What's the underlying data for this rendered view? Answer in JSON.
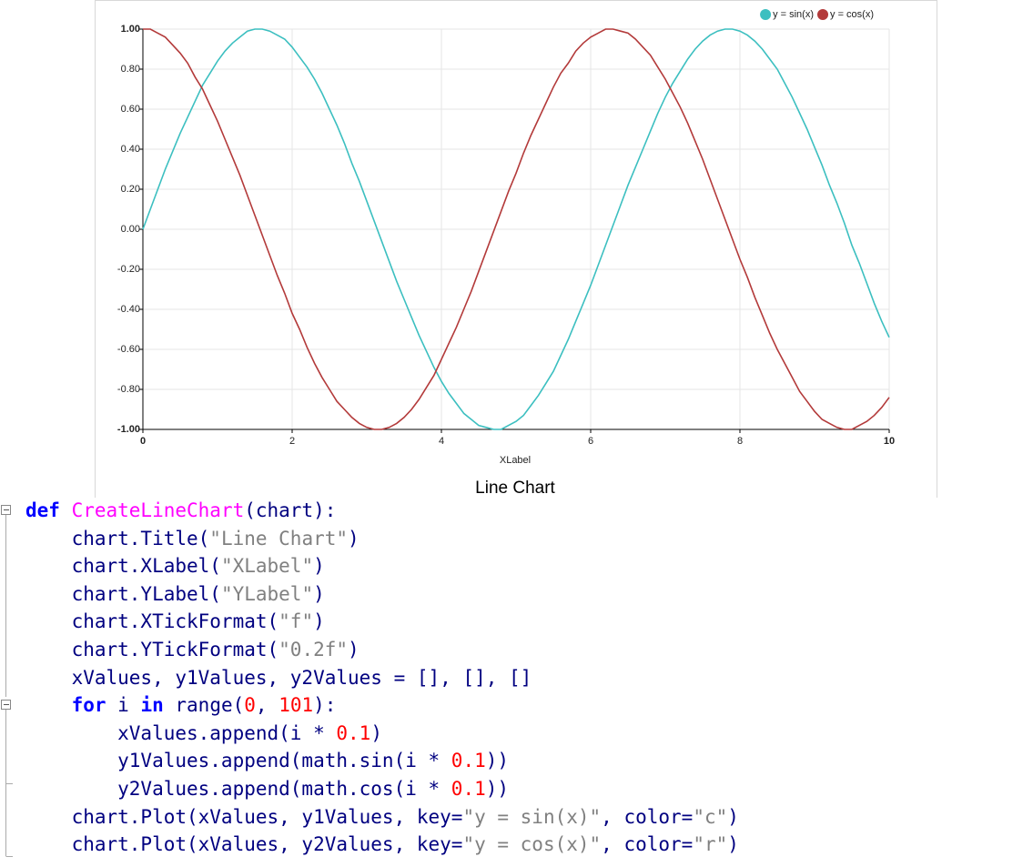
{
  "chart_data": {
    "type": "line",
    "title": "Line Chart",
    "x_label": "XLabel",
    "x": [
      0,
      0.1,
      0.2,
      0.3,
      0.4,
      0.5,
      0.6,
      0.7,
      0.8,
      0.9,
      1,
      1.1,
      1.2,
      1.3,
      1.4,
      1.5,
      1.6,
      1.7,
      1.8,
      1.9,
      2,
      2.1,
      2.2,
      2.3,
      2.4,
      2.5,
      2.6,
      2.7,
      2.8,
      2.9,
      3,
      3.1,
      3.2,
      3.3,
      3.4,
      3.5,
      3.6,
      3.7,
      3.8,
      3.9,
      4,
      4.1,
      4.2,
      4.3,
      4.4,
      4.5,
      4.6,
      4.7,
      4.8,
      4.9,
      5,
      5.1,
      5.2,
      5.3,
      5.4,
      5.5,
      5.6,
      5.7,
      5.8,
      5.9,
      6,
      6.1,
      6.2,
      6.3,
      6.4,
      6.5,
      6.6,
      6.7,
      6.8,
      6.9,
      7,
      7.1,
      7.2,
      7.3,
      7.4,
      7.5,
      7.6,
      7.7,
      7.8,
      7.9,
      8,
      8.1,
      8.2,
      8.3,
      8.4,
      8.5,
      8.6,
      8.7,
      8.8,
      8.9,
      9,
      9.1,
      9.2,
      9.3,
      9.4,
      9.5,
      9.6,
      9.7,
      9.8,
      9.9,
      10
    ],
    "series": [
      {
        "name": "y = sin(x)",
        "color": "#3cbfc0",
        "values": [
          0,
          0.1,
          0.2,
          0.3,
          0.39,
          0.48,
          0.56,
          0.64,
          0.72,
          0.78,
          0.84,
          0.89,
          0.93,
          0.96,
          0.99,
          1,
          1,
          0.99,
          0.97,
          0.95,
          0.91,
          0.86,
          0.81,
          0.75,
          0.68,
          0.6,
          0.52,
          0.43,
          0.33,
          0.24,
          0.14,
          0.04,
          -0.06,
          -0.16,
          -0.26,
          -0.35,
          -0.44,
          -0.53,
          -0.61,
          -0.69,
          -0.76,
          -0.82,
          -0.87,
          -0.92,
          -0.95,
          -0.98,
          -0.99,
          -1,
          -1,
          -0.98,
          -0.96,
          -0.93,
          -0.88,
          -0.83,
          -0.77,
          -0.71,
          -0.63,
          -0.55,
          -0.46,
          -0.37,
          -0.28,
          -0.18,
          -0.08,
          0.02,
          0.12,
          0.22,
          0.31,
          0.4,
          0.49,
          0.58,
          0.66,
          0.73,
          0.79,
          0.85,
          0.9,
          0.94,
          0.97,
          0.99,
          1,
          1,
          0.99,
          0.97,
          0.94,
          0.9,
          0.85,
          0.8,
          0.73,
          0.66,
          0.58,
          0.5,
          0.41,
          0.32,
          0.22,
          0.13,
          0.03,
          -0.08,
          -0.17,
          -0.27,
          -0.37,
          -0.46,
          -0.54
        ]
      },
      {
        "name": "y = cos(x)",
        "color": "#b33a3a",
        "values": [
          1,
          1,
          0.98,
          0.96,
          0.92,
          0.88,
          0.83,
          0.76,
          0.7,
          0.62,
          0.54,
          0.45,
          0.36,
          0.27,
          0.17,
          0.07,
          -0.03,
          -0.13,
          -0.23,
          -0.32,
          -0.42,
          -0.5,
          -0.59,
          -0.67,
          -0.74,
          -0.8,
          -0.86,
          -0.9,
          -0.94,
          -0.97,
          -0.99,
          -1,
          -1,
          -0.99,
          -0.97,
          -0.94,
          -0.9,
          -0.85,
          -0.79,
          -0.73,
          -0.65,
          -0.57,
          -0.49,
          -0.4,
          -0.31,
          -0.21,
          -0.11,
          -0.01,
          0.09,
          0.19,
          0.28,
          0.38,
          0.47,
          0.55,
          0.63,
          0.71,
          0.78,
          0.83,
          0.89,
          0.93,
          0.96,
          0.98,
          1,
          1,
          0.99,
          0.98,
          0.95,
          0.91,
          0.87,
          0.81,
          0.75,
          0.68,
          0.61,
          0.53,
          0.44,
          0.35,
          0.25,
          0.15,
          0.05,
          -0.05,
          -0.15,
          -0.24,
          -0.34,
          -0.43,
          -0.52,
          -0.6,
          -0.67,
          -0.74,
          -0.81,
          -0.86,
          -0.91,
          -0.95,
          -0.97,
          -0.99,
          -1,
          -1,
          -0.98,
          -0.96,
          -0.93,
          -0.89,
          -0.84
        ]
      }
    ],
    "xlim": [
      0,
      10
    ],
    "xticks": [
      0,
      2,
      4,
      6,
      8,
      10
    ],
    "ylim": [
      -1,
      1
    ],
    "yticks": [
      {
        "value": -1,
        "label": "-1.00"
      },
      {
        "value": -0.8,
        "label": "-0.80"
      },
      {
        "value": -0.6,
        "label": "-0.60"
      },
      {
        "value": -0.4,
        "label": "-0.40"
      },
      {
        "value": -0.2,
        "label": "-0.20"
      },
      {
        "value": 0,
        "label": "0.00"
      },
      {
        "value": 0.2,
        "label": "0.20"
      },
      {
        "value": 0.4,
        "label": "0.40"
      },
      {
        "value": 0.6,
        "label": "0.60"
      },
      {
        "value": 0.8,
        "label": "0.80"
      },
      {
        "value": 1,
        "label": "1.00"
      }
    ],
    "grid": true,
    "legend": "top-right"
  },
  "code": {
    "lines": [
      [
        {
          "text": "def ",
          "color": "#0000ff"
        },
        {
          "text": "CreateLineChart",
          "color": "#ff00ff"
        },
        {
          "text": "(chart):",
          "color": "#000080"
        }
      ],
      [
        {
          "text": "    chart.Title(",
          "color": "#000080"
        },
        {
          "text": "\"Line Chart\"",
          "color": "#808080"
        },
        {
          "text": ")",
          "color": "#000080"
        }
      ],
      [
        {
          "text": "    chart.XLabel(",
          "color": "#000080"
        },
        {
          "text": "\"XLabel\"",
          "color": "#808080"
        },
        {
          "text": ")",
          "color": "#000080"
        }
      ],
      [
        {
          "text": "    chart.YLabel(",
          "color": "#000080"
        },
        {
          "text": "\"YLabel\"",
          "color": "#808080"
        },
        {
          "text": ")",
          "color": "#000080"
        }
      ],
      [
        {
          "text": "    chart.XTickFormat(",
          "color": "#000080"
        },
        {
          "text": "\"f\"",
          "color": "#808080"
        },
        {
          "text": ")",
          "color": "#000080"
        }
      ],
      [
        {
          "text": "    chart.YTickFormat(",
          "color": "#000080"
        },
        {
          "text": "\"0.2f\"",
          "color": "#808080"
        },
        {
          "text": ")",
          "color": "#000080"
        }
      ],
      [
        {
          "text": "    xValues, y1Values, y2Values = [], [], []",
          "color": "#000080"
        }
      ],
      [
        {
          "text": "    ",
          "color": "#000080"
        },
        {
          "text": "for",
          "color": "#0000ff"
        },
        {
          "text": " i ",
          "color": "#000080"
        },
        {
          "text": "in",
          "color": "#0000ff"
        },
        {
          "text": " range(",
          "color": "#000080"
        },
        {
          "text": "0",
          "color": "#ff0000"
        },
        {
          "text": ", ",
          "color": "#000080"
        },
        {
          "text": "101",
          "color": "#ff0000"
        },
        {
          "text": "):",
          "color": "#000080"
        }
      ],
      [
        {
          "text": "        xValues.append(i * ",
          "color": "#000080"
        },
        {
          "text": "0.1",
          "color": "#ff0000"
        },
        {
          "text": ")",
          "color": "#000080"
        }
      ],
      [
        {
          "text": "        y1Values.append(math.sin(i * ",
          "color": "#000080"
        },
        {
          "text": "0.1",
          "color": "#ff0000"
        },
        {
          "text": "))",
          "color": "#000080"
        }
      ],
      [
        {
          "text": "        y2Values.append(math.cos(i * ",
          "color": "#000080"
        },
        {
          "text": "0.1",
          "color": "#ff0000"
        },
        {
          "text": "))",
          "color": "#000080"
        }
      ],
      [
        {
          "text": "    chart.Plot(xValues, y1Values, key=",
          "color": "#000080"
        },
        {
          "text": "\"y = sin(x)\"",
          "color": "#808080"
        },
        {
          "text": ", color=",
          "color": "#000080"
        },
        {
          "text": "\"c\"",
          "color": "#808080"
        },
        {
          "text": ")",
          "color": "#000080"
        }
      ],
      [
        {
          "text": "    chart.Plot(xValues, y2Values, key=",
          "color": "#000080"
        },
        {
          "text": "\"y = cos(x)\"",
          "color": "#808080"
        },
        {
          "text": ", color=",
          "color": "#000080"
        },
        {
          "text": "\"r\"",
          "color": "#808080"
        },
        {
          "text": ")",
          "color": "#000080"
        }
      ]
    ]
  }
}
